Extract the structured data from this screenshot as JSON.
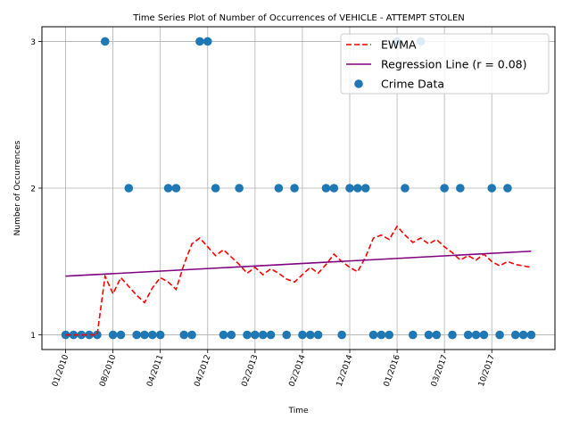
{
  "chart_data": {
    "type": "scatter",
    "title": "Time Series Plot of Number of Occurrences of VEHICLE - ATTEMPT STOLEN",
    "xlabel": "Time",
    "ylabel": "Number of Occurrences",
    "grid": true,
    "legend_position": "top-right",
    "x_ticks": [
      "01/2010",
      "08/2010",
      "04/2011",
      "04/2012",
      "02/2013",
      "02/2014",
      "12/2014",
      "01/2016",
      "03/2017",
      "10/2017"
    ],
    "y_ticks": [
      "1",
      "2",
      "3"
    ],
    "ylim": [
      0.9,
      3.1
    ],
    "x_tick_index": [
      0,
      6,
      12,
      18,
      24,
      30,
      36,
      42,
      48,
      54
    ],
    "x_range_index": [
      -3,
      62
    ],
    "series": [
      {
        "name": "Crime Data",
        "kind": "scatter",
        "color": "#1f77b4",
        "x": [
          0,
          1,
          2,
          3,
          4,
          5,
          6,
          7,
          8,
          9,
          10,
          11,
          12,
          13,
          14,
          15,
          16,
          17,
          18,
          19,
          20,
          21,
          22,
          23,
          24,
          25,
          26,
          27,
          28,
          29,
          30,
          31,
          32,
          33,
          34,
          35,
          36,
          37,
          38,
          39,
          40,
          41,
          42,
          43,
          44,
          45,
          46,
          47,
          48,
          49,
          50,
          51,
          52,
          53,
          54,
          55,
          56,
          57,
          58,
          59
        ],
        "y": [
          1,
          1,
          1,
          1,
          1,
          3,
          1,
          1,
          2,
          1,
          1,
          1,
          1,
          2,
          2,
          1,
          1,
          3,
          3,
          2,
          1,
          1,
          2,
          1,
          1,
          1,
          1,
          2,
          1,
          2,
          1,
          1,
          1,
          2,
          2,
          1,
          2,
          2,
          2,
          1,
          1,
          1,
          3,
          2,
          1,
          3,
          1,
          1,
          2,
          1,
          2,
          1,
          1,
          1,
          2,
          1,
          2,
          1,
          1,
          1
        ]
      },
      {
        "name": "EWMA",
        "kind": "line",
        "color": "#ff0000",
        "dashed": true,
        "x": [
          0,
          1,
          2,
          3,
          4,
          5,
          6,
          7,
          8,
          9,
          10,
          11,
          12,
          13,
          14,
          15,
          16,
          17,
          18,
          19,
          20,
          21,
          22,
          23,
          24,
          25,
          26,
          27,
          28,
          29,
          30,
          31,
          32,
          33,
          34,
          35,
          36,
          37,
          38,
          39,
          40,
          41,
          42,
          43,
          44,
          45,
          46,
          47,
          48,
          49,
          50,
          51,
          52,
          53,
          54,
          55,
          56,
          57,
          58,
          59
        ],
        "y": [
          1,
          1,
          1,
          1,
          1,
          1.4,
          1.28,
          1.39,
          1.33,
          1.27,
          1.22,
          1.32,
          1.39,
          1.36,
          1.31,
          1.48,
          1.62,
          1.66,
          1.6,
          1.54,
          1.58,
          1.53,
          1.48,
          1.42,
          1.46,
          1.41,
          1.45,
          1.42,
          1.38,
          1.36,
          1.41,
          1.46,
          1.42,
          1.48,
          1.55,
          1.5,
          1.46,
          1.43,
          1.53,
          1.66,
          1.68,
          1.65,
          1.74,
          1.68,
          1.63,
          1.66,
          1.62,
          1.65,
          1.6,
          1.56,
          1.51,
          1.54,
          1.51,
          1.55,
          1.5,
          1.47,
          1.5,
          1.48,
          1.47,
          1.46
        ]
      },
      {
        "name": "Regression Line (r = 0.08)",
        "kind": "line",
        "color": "#800080",
        "dashed": false,
        "x": [
          0,
          59
        ],
        "y": [
          1.4,
          1.57
        ]
      }
    ],
    "legend": [
      {
        "label": "EWMA",
        "kind": "dashed-line",
        "color": "#ff0000"
      },
      {
        "label": "Regression Line (r = 0.08)",
        "kind": "line",
        "color": "#800080"
      },
      {
        "label": "Crime Data",
        "kind": "marker",
        "color": "#1f77b4"
      }
    ]
  }
}
